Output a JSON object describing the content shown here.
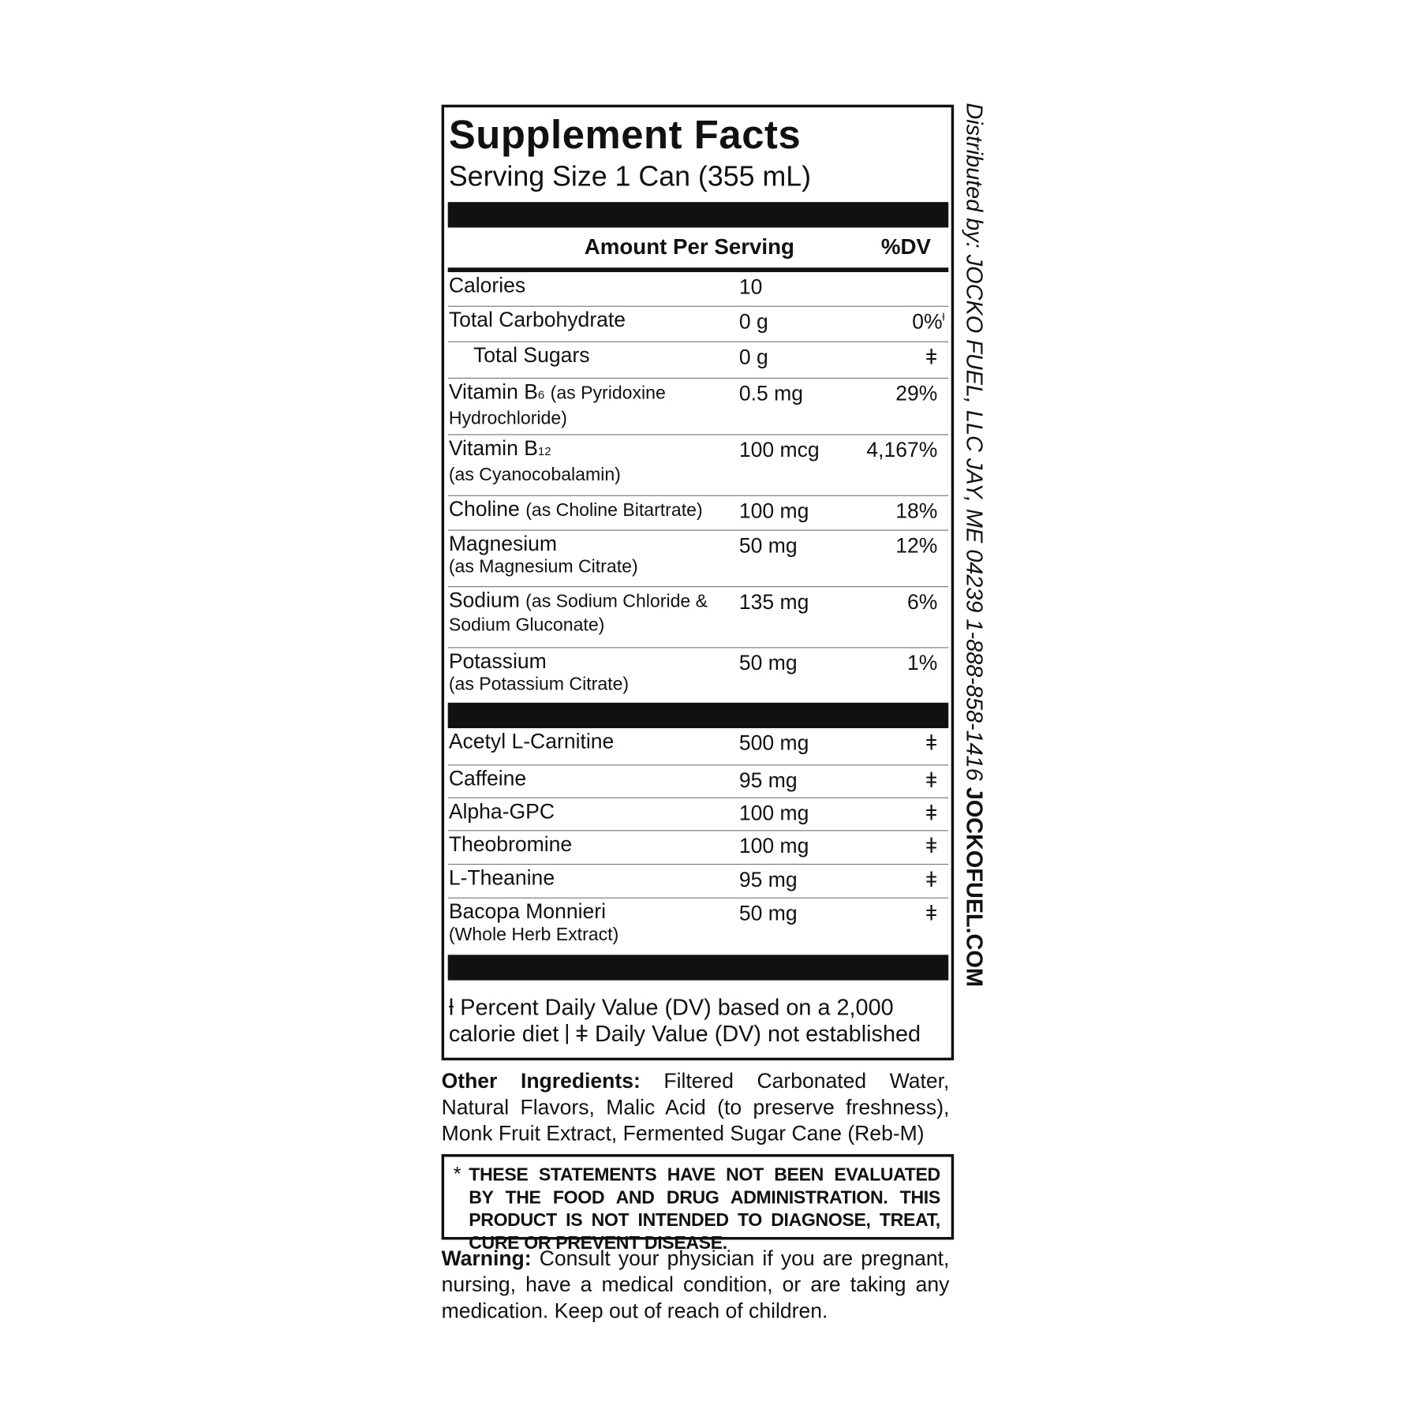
{
  "header": {
    "title": "Supplement Facts",
    "serving": "Serving Size 1 Can (355 mL)"
  },
  "columns": {
    "amount": "Amount Per Serving",
    "dv": "%DV"
  },
  "table": {
    "rows": [
      {
        "name": "Calories",
        "amount": "10"
      },
      {
        "name": "Total Carbohydrate",
        "amount": "0 g",
        "dv": "0%",
        "dv_mark": "ƚ"
      },
      {
        "name": "Total Sugars",
        "amount": "0 g",
        "dv": "ǂ"
      },
      {
        "name": "Vitamin B",
        "sub": "6",
        "detail": "(as Pyridoxine Hydrochloride)",
        "amount": "0.5 mg",
        "dv": "29%"
      },
      {
        "name": "Vitamin B",
        "sub": "12",
        "detail": "(as Cyanocobalamin)",
        "amount": "100 mcg",
        "dv": "4,167%"
      },
      {
        "name": "Choline",
        "detail": "(as Choline Bitartrate)",
        "amount": "100 mg",
        "dv": "18%"
      },
      {
        "name": "Magnesium",
        "detail": "(as Magnesium Citrate)",
        "amount": "50 mg",
        "dv": "12%"
      },
      {
        "name": "Sodium",
        "detail": "(as Sodium Chloride & Sodium Gluconate)",
        "amount": "135 mg",
        "dv": "6%"
      },
      {
        "name": "Potassium",
        "detail": "(as Potassium Citrate)",
        "amount": "50 mg",
        "dv": "1%"
      }
    ],
    "rows2": [
      {
        "name": "Acetyl L-Carnitine",
        "amount": "500 mg",
        "dv": "ǂ"
      },
      {
        "name": "Caffeine",
        "amount": "95 mg",
        "dv": "ǂ"
      },
      {
        "name": "Alpha-GPC",
        "amount": "100 mg",
        "dv": "ǂ"
      },
      {
        "name": "Theobromine",
        "amount": "100 mg",
        "dv": "ǂ"
      },
      {
        "name": "L-Theanine",
        "amount": "95 mg",
        "dv": "ǂ"
      },
      {
        "name": "Bacopa Monnieri",
        "detail": "(Whole Herb Extract)",
        "amount": "50 mg",
        "dv": "ǂ"
      }
    ]
  },
  "footnote": {
    "first": "ƚ Percent Daily Value (DV) based on a 2,000 calorie diet",
    "second": "ǂ Daily Value (DV) not established"
  },
  "other": {
    "label": "Other Ingredients:",
    "text": "Filtered Carbonated Water, Natural Flavors, Malic Acid (to preserve freshness), Monk Fruit Extract, Fermented Sugar Cane (Reb-M)"
  },
  "disclaimer": {
    "star": "*",
    "text": "THESE STATEMENTS HAVE NOT BEEN EVALUATED BY THE FOOD AND DRUG ADMINISTRATION. THIS PRODUCT IS NOT INTENDED TO DIAGNOSE, TREAT, CURE OR PREVENT DISEASE."
  },
  "warning": {
    "label": "Warning:",
    "text": "Consult your physician if you are pregnant, nursing, have a medical condition, or are taking any medication. Keep out of reach of children."
  },
  "side": {
    "distributor": "Distributed by: JOCKO FUEL, LLC JAY, ME 04239 1-888-858-1416",
    "website": "JOCKOFUEL.COM"
  }
}
